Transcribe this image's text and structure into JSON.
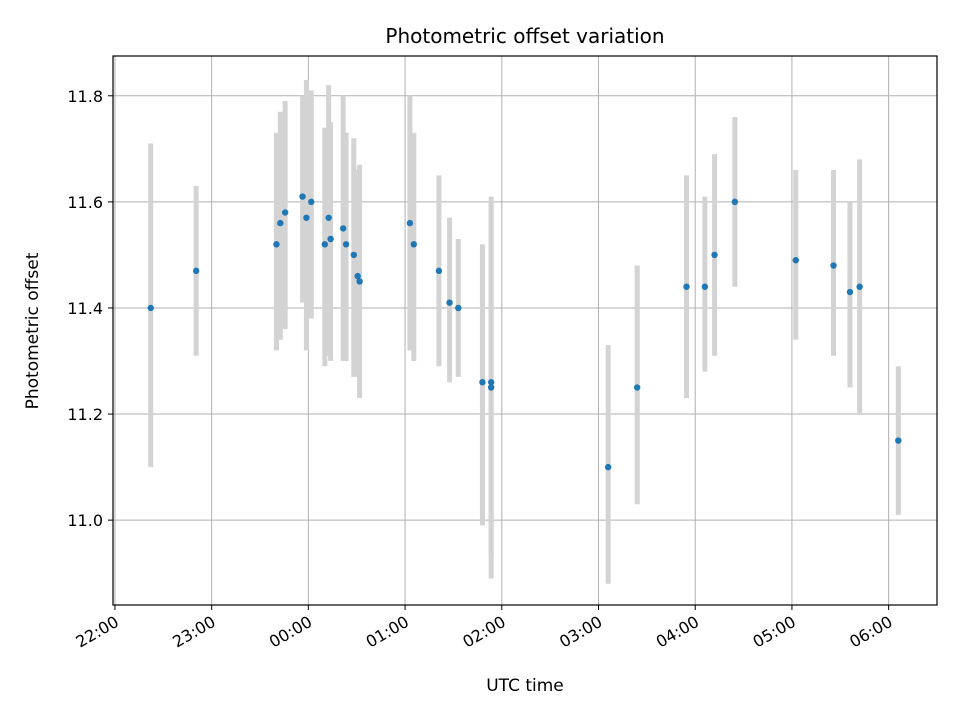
{
  "chart_data": {
    "type": "scatter",
    "title": "Photometric offset variation",
    "xlabel": "UTC time",
    "ylabel": "Photometric offset",
    "x_unit": "hours",
    "xlim": [
      -2.02,
      6.5
    ],
    "ylim": [
      10.84,
      11.875
    ],
    "grid": true,
    "x_ticks": [
      {
        "value": -2,
        "label": "22:00"
      },
      {
        "value": -1,
        "label": "23:00"
      },
      {
        "value": 0,
        "label": "00:00"
      },
      {
        "value": 1,
        "label": "01:00"
      },
      {
        "value": 2,
        "label": "02:00"
      },
      {
        "value": 3,
        "label": "03:00"
      },
      {
        "value": 4,
        "label": "04:00"
      },
      {
        "value": 5,
        "label": "05:00"
      },
      {
        "value": 6,
        "label": "06:00"
      }
    ],
    "y_ticks": [
      {
        "value": 11.0,
        "label": "11.0"
      },
      {
        "value": 11.2,
        "label": "11.2"
      },
      {
        "value": 11.4,
        "label": "11.4"
      },
      {
        "value": 11.6,
        "label": "11.6"
      },
      {
        "value": 11.8,
        "label": "11.8"
      }
    ],
    "colors": {
      "points": "#1f77b4",
      "errorbars": "#d3d3d3",
      "grid": "#b0b0b0"
    },
    "series": [
      {
        "points": [
          {
            "x": -1.63,
            "y": 11.4,
            "ylo": 11.1,
            "yhi": 11.71
          },
          {
            "x": -1.16,
            "y": 11.47,
            "ylo": 11.31,
            "yhi": 11.63
          },
          {
            "x": -0.33,
            "y": 11.52,
            "ylo": 11.32,
            "yhi": 11.73
          },
          {
            "x": -0.29,
            "y": 11.56,
            "ylo": 11.34,
            "yhi": 11.77
          },
          {
            "x": -0.24,
            "y": 11.58,
            "ylo": 11.36,
            "yhi": 11.79
          },
          {
            "x": -0.06,
            "y": 11.61,
            "ylo": 11.41,
            "yhi": 11.8
          },
          {
            "x": -0.02,
            "y": 11.57,
            "ylo": 11.32,
            "yhi": 11.83
          },
          {
            "x": 0.03,
            "y": 11.6,
            "ylo": 11.38,
            "yhi": 11.81
          },
          {
            "x": 0.17,
            "y": 11.52,
            "ylo": 11.29,
            "yhi": 11.74
          },
          {
            "x": 0.21,
            "y": 11.57,
            "ylo": 11.31,
            "yhi": 11.82
          },
          {
            "x": 0.23,
            "y": 11.53,
            "ylo": 11.3,
            "yhi": 11.75
          },
          {
            "x": 0.36,
            "y": 11.55,
            "ylo": 11.3,
            "yhi": 11.8
          },
          {
            "x": 0.39,
            "y": 11.52,
            "ylo": 11.3,
            "yhi": 11.73
          },
          {
            "x": 0.47,
            "y": 11.5,
            "ylo": 11.27,
            "yhi": 11.72
          },
          {
            "x": 0.51,
            "y": 11.46,
            "ylo": 11.27,
            "yhi": 11.66
          },
          {
            "x": 0.53,
            "y": 11.45,
            "ylo": 11.23,
            "yhi": 11.67
          },
          {
            "x": 1.05,
            "y": 11.56,
            "ylo": 11.32,
            "yhi": 11.8
          },
          {
            "x": 1.09,
            "y": 11.52,
            "ylo": 11.3,
            "yhi": 11.73
          },
          {
            "x": 1.35,
            "y": 11.47,
            "ylo": 11.29,
            "yhi": 11.65
          },
          {
            "x": 1.46,
            "y": 11.41,
            "ylo": 11.26,
            "yhi": 11.57
          },
          {
            "x": 1.55,
            "y": 11.4,
            "ylo": 11.27,
            "yhi": 11.53
          },
          {
            "x": 1.8,
            "y": 11.26,
            "ylo": 10.99,
            "yhi": 11.52
          },
          {
            "x": 1.89,
            "y": 11.26,
            "ylo": 10.93,
            "yhi": 11.61
          },
          {
            "x": 1.89,
            "y": 11.25,
            "ylo": 10.89,
            "yhi": 11.6
          },
          {
            "x": 3.1,
            "y": 11.1,
            "ylo": 10.88,
            "yhi": 11.33
          },
          {
            "x": 3.4,
            "y": 11.25,
            "ylo": 11.03,
            "yhi": 11.48
          },
          {
            "x": 3.91,
            "y": 11.44,
            "ylo": 11.23,
            "yhi": 11.65
          },
          {
            "x": 4.1,
            "y": 11.44,
            "ylo": 11.28,
            "yhi": 11.61
          },
          {
            "x": 4.2,
            "y": 11.5,
            "ylo": 11.31,
            "yhi": 11.69
          },
          {
            "x": 4.41,
            "y": 11.6,
            "ylo": 11.44,
            "yhi": 11.76
          },
          {
            "x": 5.04,
            "y": 11.49,
            "ylo": 11.34,
            "yhi": 11.66
          },
          {
            "x": 5.43,
            "y": 11.48,
            "ylo": 11.31,
            "yhi": 11.66
          },
          {
            "x": 5.6,
            "y": 11.43,
            "ylo": 11.25,
            "yhi": 11.6
          },
          {
            "x": 5.7,
            "y": 11.44,
            "ylo": 11.2,
            "yhi": 11.68
          },
          {
            "x": 6.1,
            "y": 11.15,
            "ylo": 11.01,
            "yhi": 11.29
          }
        ]
      }
    ]
  }
}
